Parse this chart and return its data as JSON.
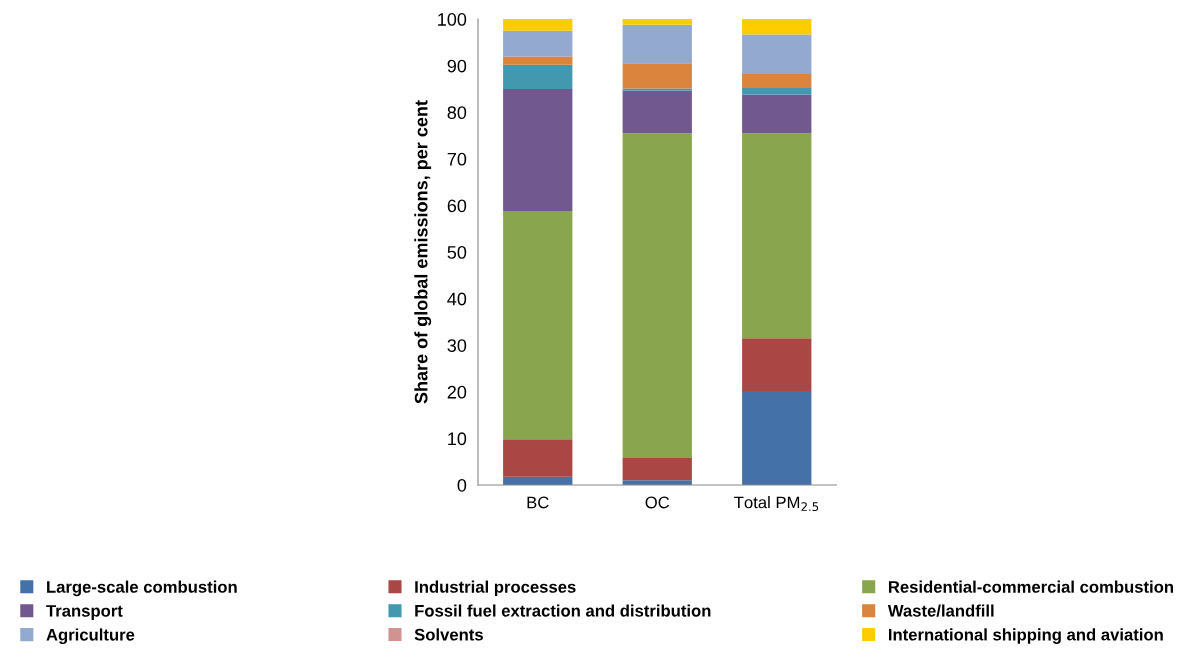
{
  "chart_data": {
    "type": "bar",
    "stacked": true,
    "ylabel": "Share of global emissions, per cent",
    "categories": [
      "BC",
      "OC",
      "Total PM$_{2.5}$"
    ],
    "series": [
      {
        "name": "Large-scale combustion",
        "color": "#4472a8",
        "values": [
          1.8,
          1.0,
          20.2
        ]
      },
      {
        "name": "Industrial processes",
        "color": "#aa4644",
        "values": [
          8.0,
          4.8,
          11.3
        ]
      },
      {
        "name": "Residential-commercial combustion",
        "color": "#89a64e",
        "values": [
          49.0,
          69.7,
          44.0
        ]
      },
      {
        "name": "Transport",
        "color": "#71588f",
        "values": [
          26.2,
          9.2,
          8.3
        ]
      },
      {
        "name": "Fossil fuel extraction and distribution",
        "color": "#4198af",
        "values": [
          5.2,
          0.4,
          1.4
        ]
      },
      {
        "name": "Waste/landfill",
        "color": "#db843d",
        "values": [
          1.8,
          5.4,
          3.0
        ]
      },
      {
        "name": "Agriculture",
        "color": "#93a9cf",
        "values": [
          5.5,
          8.3,
          8.5
        ]
      },
      {
        "name": "Solvents",
        "color": "#d19392",
        "values": [
          0,
          0,
          0
        ]
      },
      {
        "name": "International shipping and aviation",
        "color": "#ffcc00",
        "values": [
          2.5,
          1.2,
          3.3
        ]
      }
    ],
    "ylim": [
      0,
      100
    ],
    "yticks": [
      0,
      10,
      20,
      30,
      40,
      50,
      60,
      70,
      80,
      90,
      100
    ],
    "grid": false,
    "legend": "bottom"
  }
}
